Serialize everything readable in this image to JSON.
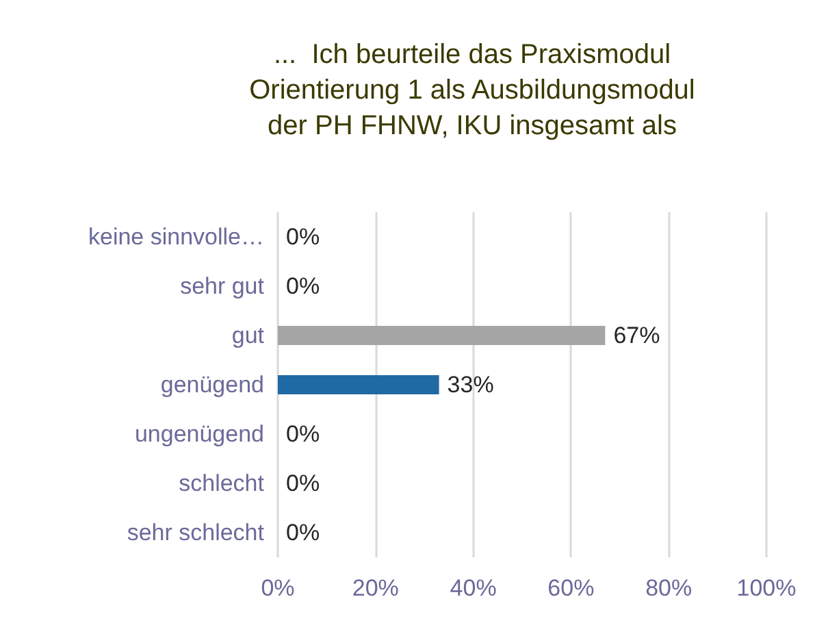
{
  "chart_data": {
    "type": "bar",
    "orientation": "horizontal",
    "title": "...  Ich beurteile das Praxismodul\nOrientierung 1 als Ausbildungsmodul\nder PH FHNW, IKU insgesamt als",
    "categories": [
      "keine sinnvolle…",
      "sehr gut",
      "gut",
      "genügend",
      "ungenügend",
      "schlecht",
      "sehr schlecht"
    ],
    "values": [
      0,
      0,
      67,
      33,
      0,
      0,
      0
    ],
    "colors": [
      null,
      null,
      "#a5a5a5",
      "#1f6aa5",
      null,
      null,
      null
    ],
    "value_labels": [
      "0%",
      "0%",
      "67%",
      "33%",
      "0%",
      "0%",
      "0%"
    ],
    "xlim": [
      0,
      100
    ],
    "xticks": [
      {
        "value": 0,
        "label": "0%"
      },
      {
        "value": 20,
        "label": "20%"
      },
      {
        "value": 40,
        "label": "40%"
      },
      {
        "value": 60,
        "label": "60%"
      },
      {
        "value": 80,
        "label": "80%"
      },
      {
        "value": 100,
        "label": "100%"
      }
    ],
    "grid": "x"
  }
}
